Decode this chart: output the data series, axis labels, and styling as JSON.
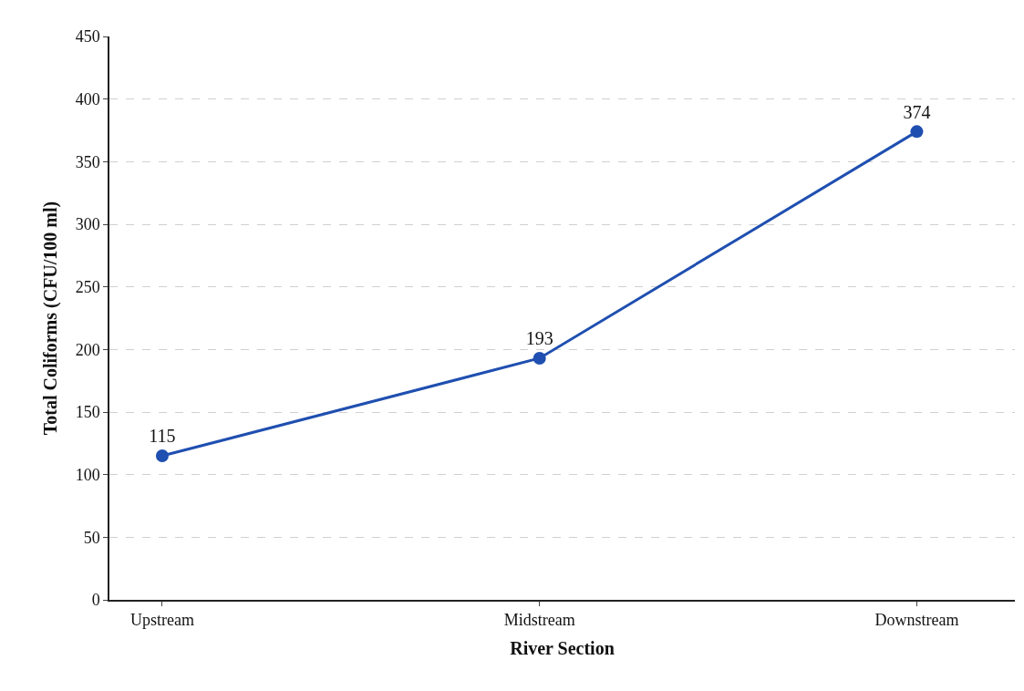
{
  "chart_data": {
    "type": "line",
    "xlabel": "River Section",
    "ylabel": "Total Coliforms (CFU/100 ml)",
    "categories": [
      "Upstream",
      "Midstream",
      "Downstream"
    ],
    "series": [
      {
        "color": "#1f4fb0",
        "values": [
          115,
          193,
          374
        ]
      }
    ],
    "ylim": [
      0,
      450
    ],
    "yticks": [
      0,
      50,
      100,
      150,
      200,
      250,
      300,
      350,
      400,
      450
    ],
    "grid": "y",
    "marker": "circle",
    "line_style": "solid",
    "data_labels": true,
    "legend": false
  }
}
